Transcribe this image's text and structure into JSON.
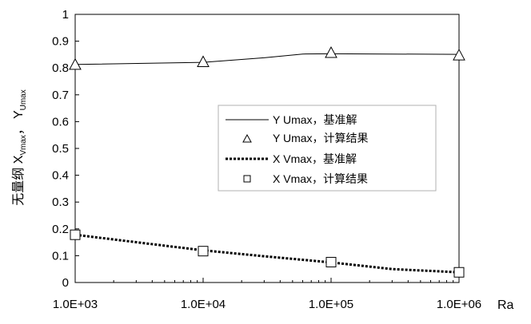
{
  "chart_data": {
    "type": "line",
    "title": "",
    "xlabel": "Ra",
    "ylabel": {
      "main_1": "无量纲 X",
      "sub_1": "Vmax",
      "sep": "，",
      "main_2": "Y",
      "sub_2": "Umax"
    },
    "xscale": "log",
    "xlim": [
      1000,
      1000000
    ],
    "ylim": [
      0,
      1
    ],
    "x_ticks": [
      1000,
      10000,
      100000,
      1000000
    ],
    "x_tick_labels": [
      "1.0E+03",
      "1.0E+04",
      "1.0E+05",
      "1.0E+06"
    ],
    "y_ticks": [
      0,
      0.1,
      0.2,
      0.3,
      0.4,
      0.5,
      0.6,
      0.7,
      0.8,
      0.9,
      1
    ],
    "y_tick_labels": [
      "0",
      "0.1",
      "0.2",
      "0.3",
      "0.4",
      "0.5",
      "0.6",
      "0.7",
      "0.8",
      "0.9",
      "1"
    ],
    "grid": false,
    "legend_position": "center-right",
    "series": [
      {
        "name": "Y Umax，基准解",
        "style": "solid-line",
        "color": "#000000",
        "x": [
          1000,
          10000,
          30000,
          60000,
          100000,
          1000000
        ],
        "y": [
          0.813,
          0.821,
          0.838,
          0.852,
          0.853,
          0.851
        ]
      },
      {
        "name": "Y Umax，计算结果",
        "style": "triangle-marker",
        "color": "#000000",
        "x": [
          1000,
          10000,
          100000,
          1000000
        ],
        "y": [
          0.813,
          0.823,
          0.857,
          0.848
        ]
      },
      {
        "name": "X Vmax，基准解",
        "style": "dotted-line",
        "color": "#000000",
        "x": [
          1000,
          10000,
          30000,
          100000,
          300000,
          1000000
        ],
        "y": [
          0.178,
          0.12,
          0.098,
          0.075,
          0.05,
          0.038
        ]
      },
      {
        "name": "X Vmax，计算结果",
        "style": "square-marker",
        "color": "#000000",
        "x": [
          1000,
          10000,
          100000,
          1000000
        ],
        "y": [
          0.178,
          0.117,
          0.076,
          0.038
        ]
      }
    ]
  }
}
